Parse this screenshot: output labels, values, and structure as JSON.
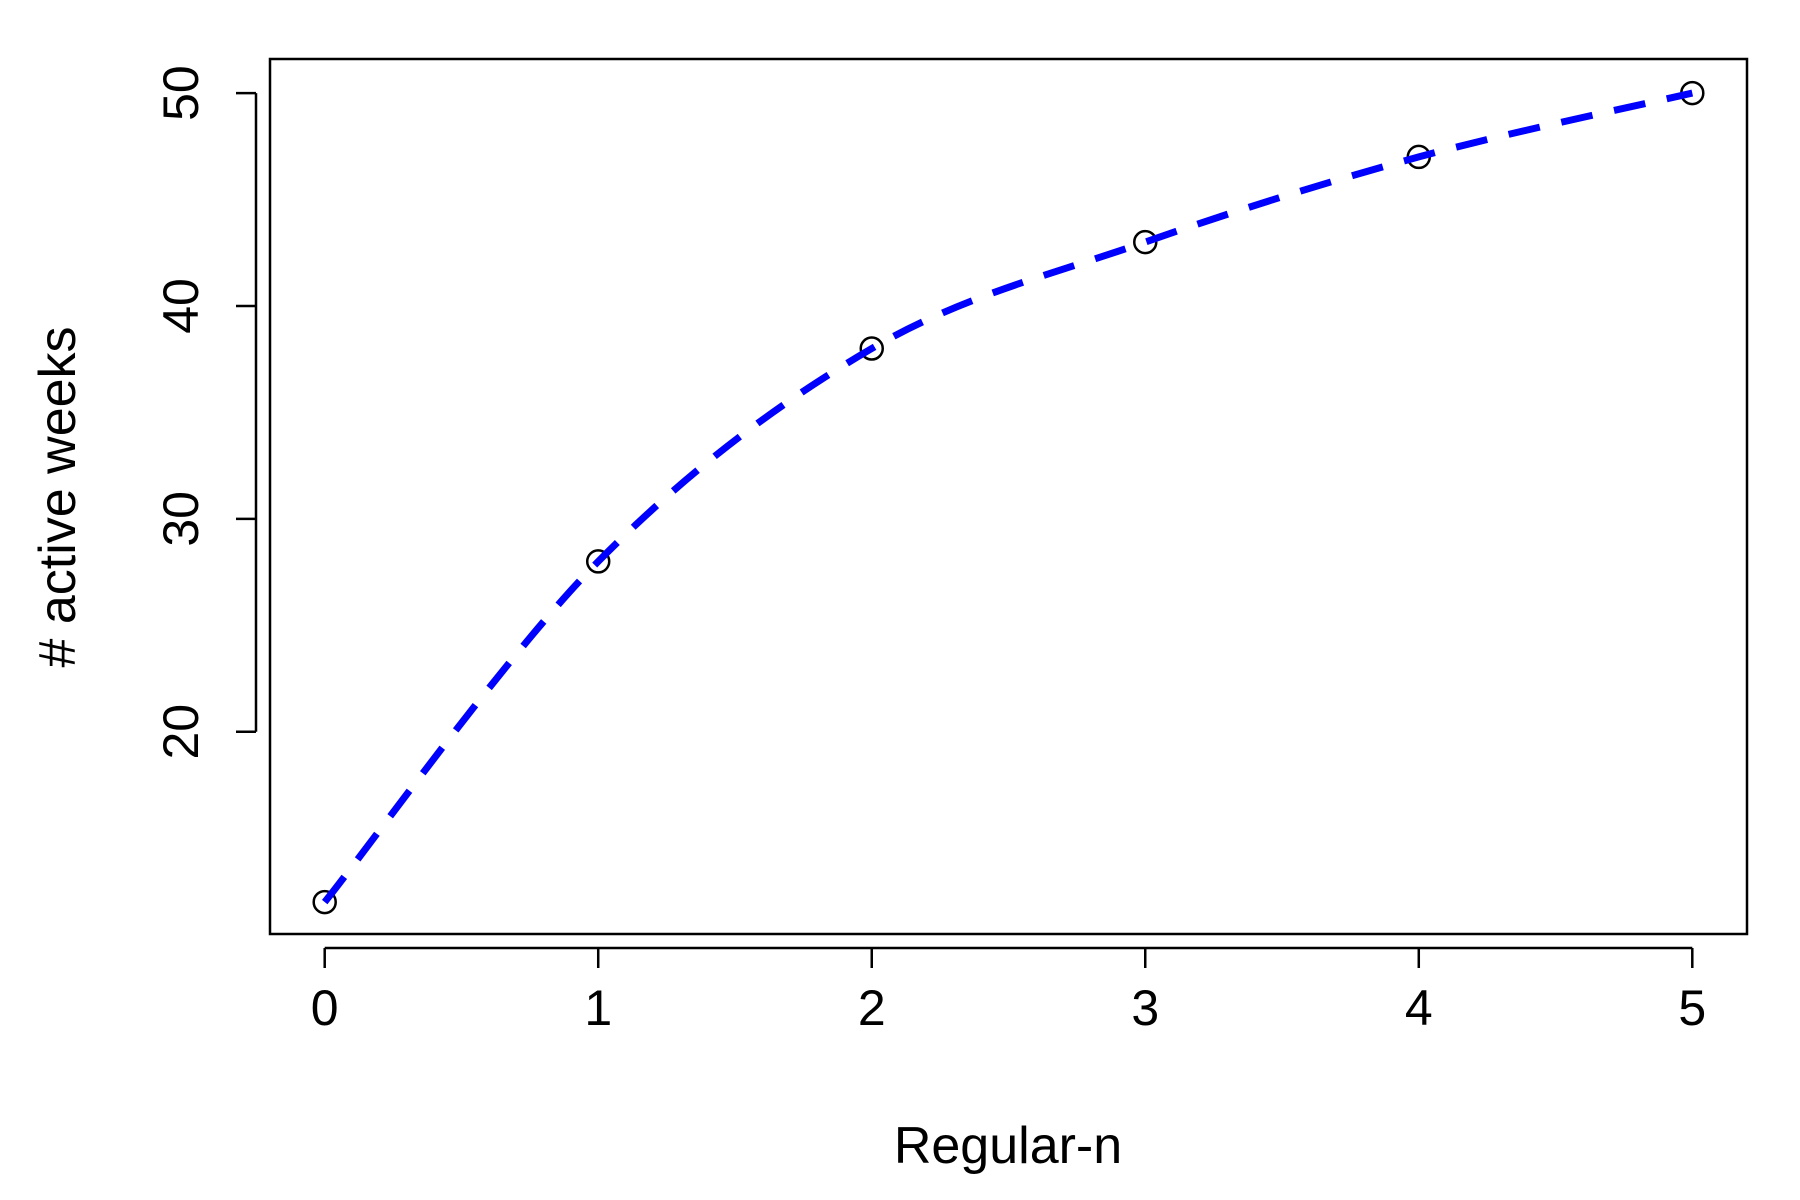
{
  "chart_data": {
    "type": "line",
    "title": "",
    "xlabel": "Regular-n",
    "ylabel": "# active weeks",
    "x": [
      0,
      1,
      2,
      3,
      4,
      5
    ],
    "series": [
      {
        "values": [
          12,
          28,
          38,
          43,
          47,
          50
        ],
        "line_color": "#0000ff",
        "line_style": "dashed",
        "marker": "open-circle",
        "marker_color": "#000000"
      }
    ],
    "xticks": [
      "0",
      "1",
      "2",
      "3",
      "4",
      "5"
    ],
    "yticks": [
      "20",
      "30",
      "40",
      "50"
    ],
    "xlim": [
      -0.2,
      5.2
    ],
    "ylim": [
      10.5,
      51.6
    ],
    "grid": false,
    "legend": "none"
  }
}
